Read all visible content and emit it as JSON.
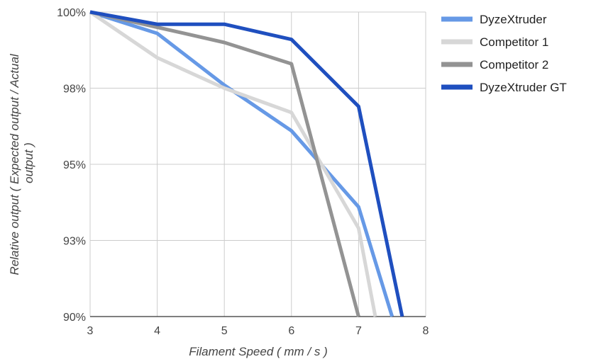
{
  "chart_data": {
    "type": "line",
    "xlabel": "Filament Speed ( mm / s )",
    "ylabel_lines": [
      "Relative output ( Expected output / Actual",
      "output )"
    ],
    "xlim": [
      3,
      8
    ],
    "ylim": [
      90,
      100
    ],
    "x_ticks": [
      "3",
      "4",
      "5",
      "6",
      "7",
      "8"
    ],
    "y_ticks": [
      "90%",
      "93%",
      "95%",
      "98%",
      "100%"
    ],
    "y_tick_values": [
      90,
      92.5,
      95,
      97.5,
      100
    ],
    "grid": true,
    "legend_position": "right",
    "series": [
      {
        "name": "DyzeXtruder",
        "color": "#6699e6",
        "x": [
          3,
          4,
          5,
          6,
          7,
          7.5
        ],
        "y": [
          100,
          99.3,
          97.6,
          96.1,
          93.6,
          90
        ]
      },
      {
        "name": "Competitor 1",
        "color": "#d7d7d7",
        "x": [
          3,
          4,
          5,
          6,
          7,
          7.25
        ],
        "y": [
          100,
          98.5,
          97.5,
          96.7,
          92.9,
          90
        ]
      },
      {
        "name": "Competitor 2",
        "color": "#939393",
        "x": [
          3,
          4,
          5,
          6,
          7
        ],
        "y": [
          100,
          99.5,
          99.0,
          98.3,
          90
        ]
      },
      {
        "name": "DyzeXtruder GT",
        "color": "#1f4fbf",
        "x": [
          3,
          4,
          5,
          6,
          7,
          7.65
        ],
        "y": [
          100,
          99.6,
          99.6,
          99.1,
          96.9,
          90
        ]
      }
    ]
  }
}
